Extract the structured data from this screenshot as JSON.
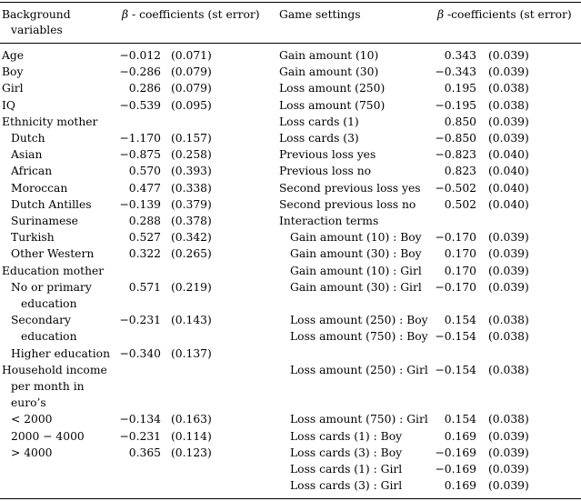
{
  "headers": {
    "left_var": [
      "Background",
      "variables"
    ],
    "left_coef": {
      "beta": "β",
      "rest": " - coefficients (st error)"
    },
    "right_var": "Game settings",
    "right_coef": {
      "beta": "β",
      "rest": " -coefficients (st error)"
    }
  },
  "left_rows": [
    {
      "label": [
        "Age"
      ],
      "indent": 0,
      "coef": "−0.012",
      "se": "(0.071)"
    },
    {
      "label": [
        "Boy"
      ],
      "indent": 0,
      "coef": "−0.286",
      "se": "(0.079)"
    },
    {
      "label": [
        "Girl"
      ],
      "indent": 0,
      "coef": "0.286",
      "se": "(0.079)"
    },
    {
      "label": [
        "IQ"
      ],
      "indent": 0,
      "coef": "−0.539",
      "se": "(0.095)"
    },
    {
      "label": [
        "Ethnicity mother"
      ],
      "indent": 0,
      "coef": "",
      "se": ""
    },
    {
      "label": [
        "Dutch"
      ],
      "indent": 1,
      "coef": "−1.170",
      "se": "(0.157)"
    },
    {
      "label": [
        "Asian"
      ],
      "indent": 1,
      "coef": "−0.875",
      "se": "(0.258)"
    },
    {
      "label": [
        "African"
      ],
      "indent": 1,
      "coef": "0.570",
      "se": "(0.393)"
    },
    {
      "label": [
        "Moroccan"
      ],
      "indent": 1,
      "coef": "0.477",
      "se": "(0.338)"
    },
    {
      "label": [
        "Dutch Antilles"
      ],
      "indent": 1,
      "coef": "−0.139",
      "se": "(0.379)"
    },
    {
      "label": [
        "Surinamese"
      ],
      "indent": 1,
      "coef": "0.288",
      "se": "(0.378)"
    },
    {
      "label": [
        "Turkish"
      ],
      "indent": 1,
      "coef": "0.527",
      "se": "(0.342)"
    },
    {
      "label": [
        "Other Western"
      ],
      "indent": 1,
      "coef": "0.322",
      "se": "(0.265)"
    },
    {
      "label": [
        "Education mother"
      ],
      "indent": 0,
      "coef": "",
      "se": ""
    },
    {
      "label": [
        "No or primary",
        "education"
      ],
      "indent": 1,
      "coef": "0.571",
      "se": "(0.219)"
    },
    {
      "label": [
        "Secondary",
        "education"
      ],
      "indent": 1,
      "coef": "−0.231",
      "se": "(0.143)"
    },
    {
      "label": [
        "Higher education"
      ],
      "indent": 1,
      "coef": "−0.340",
      "se": "(0.137)"
    },
    {
      "label": [
        "Household income",
        "per month in",
        "euro’s"
      ],
      "indent": 0,
      "coef": "",
      "se": ""
    },
    {
      "label": [
        "< 2000"
      ],
      "indent": 1,
      "coef": "−0.134",
      "se": "(0.163)"
    },
    {
      "label": [
        "2000 − 4000"
      ],
      "indent": 1,
      "coef": "−0.231",
      "se": "(0.114)"
    },
    {
      "label": [
        "> 4000"
      ],
      "indent": 1,
      "coef": "0.365",
      "se": "(0.123)"
    }
  ],
  "right_rows": [
    {
      "label": "Gain amount (10)",
      "indent": 0,
      "coef": "0.343",
      "se": "(0.039)"
    },
    {
      "label": "Gain amount (30)",
      "indent": 0,
      "coef": "−0.343",
      "se": "(0.039)"
    },
    {
      "label": "Loss amount (250)",
      "indent": 0,
      "coef": "0.195",
      "se": "(0.038)"
    },
    {
      "label": "Loss amount (750)",
      "indent": 0,
      "coef": "−0.195",
      "se": "(0.038)"
    },
    {
      "label": "Loss cards (1)",
      "indent": 0,
      "coef": "0.850",
      "se": "(0.039)"
    },
    {
      "label": "Loss cards (3)",
      "indent": 0,
      "coef": "−0.850",
      "se": "(0.039)"
    },
    {
      "label": "Previous loss yes",
      "indent": 0,
      "coef": "−0.823",
      "se": "(0.040)"
    },
    {
      "label": "Previous loss no",
      "indent": 0,
      "coef": "0.823",
      "se": "(0.040)"
    },
    {
      "label": "Second previous loss yes",
      "indent": 0,
      "coef": "−0.502",
      "se": "(0.040)"
    },
    {
      "label": "Second previous loss no",
      "indent": 0,
      "coef": "0.502",
      "se": "(0.040)"
    },
    {
      "label": "Interaction terms",
      "indent": 0,
      "coef": "",
      "se": ""
    },
    {
      "label": "Gain amount (10) : Boy",
      "indent": 1,
      "coef": "−0.170",
      "se": "(0.039)"
    },
    {
      "label": "Gain amount (30) : Boy",
      "indent": 1,
      "coef": "0.170",
      "se": "(0.039)"
    },
    {
      "label": "Gain amount (10) : Girl",
      "indent": 1,
      "coef": "0.170",
      "se": "(0.039)"
    },
    {
      "label": "Gain amount (30) : Girl",
      "indent": 1,
      "coef": "−0.170",
      "se": "(0.039)"
    },
    {
      "label": "Loss amount (250) : Boy",
      "indent": 1,
      "coef": "0.154",
      "se": "(0.038)"
    },
    {
      "label": "Loss amount (750) : Boy",
      "indent": 1,
      "coef": "−0.154",
      "se": "(0.038)"
    },
    {
      "label": "Loss amount (250) : Girl",
      "indent": 1,
      "coef": "−0.154",
      "se": "(0.038)"
    },
    {
      "label": "Loss amount (750) : Girl",
      "indent": 1,
      "coef": "0.154",
      "se": "(0.038)"
    },
    {
      "label": "Loss cards (1) : Boy",
      "indent": 1,
      "coef": "0.169",
      "se": "(0.039)"
    },
    {
      "label": "Loss cards (3) : Boy",
      "indent": 1,
      "coef": "−0.169",
      "se": "(0.039)"
    },
    {
      "label": "Loss cards (1) : Girl",
      "indent": 1,
      "coef": "−0.169",
      "se": "(0.039)"
    },
    {
      "label": "Loss cards (3) : Girl",
      "indent": 1,
      "coef": "0.169",
      "se": "(0.039)"
    }
  ]
}
